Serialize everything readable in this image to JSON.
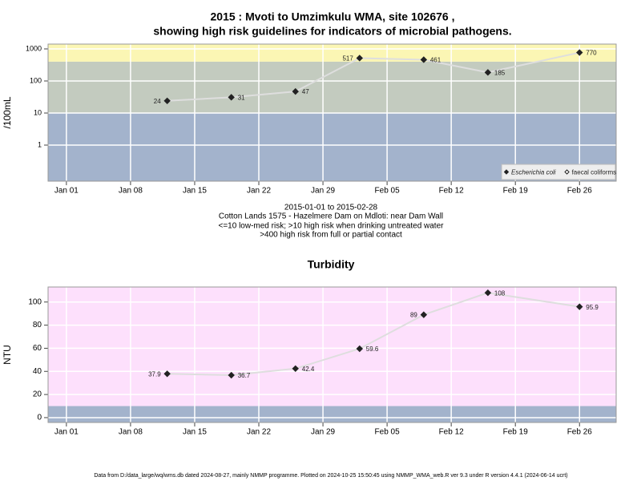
{
  "footer": "Data from D:/data_large/wq/wms.db dated 2024-08-27, mainly NMMP programme. Plotted on 2024-10-25 15:50:45 using NMMP_WMA_web.R ver 9.3 under R version 4.4.1 (2024-06-14 ucrt)",
  "chart_data": [
    {
      "type": "line",
      "title": [
        "2015 : Mvoti to Umzimkulu WMA, site 102676 ,",
        "showing high risk guidelines for indicators of microbial pathogens."
      ],
      "notes": [
        "2015-01-01 to 2015-02-28",
        "Cotton Lands 1575 - Hazelmere Dam on Mdloti: near Dam Wall",
        "<=10 low-med risk; >10 high risk when drinking untreated water",
        ">400 high risk from full or partial contact"
      ],
      "y_label": "/100mL",
      "log_scale": true,
      "grid": true,
      "legend": "bottom right",
      "x": [
        "2015-01-12",
        "2015-01-19",
        "2015-01-26",
        "2015-02-02",
        "2015-02-09",
        "2015-02-16",
        "2015-02-26"
      ],
      "xlim": [
        "2014-12-30",
        "2015-03-02"
      ],
      "xticks": [
        {
          "value": "2015-01-01",
          "label": "Jan 01"
        },
        {
          "value": "2015-01-08",
          "label": "Jan 08"
        },
        {
          "value": "2015-01-15",
          "label": "Jan 15"
        },
        {
          "value": "2015-01-22",
          "label": "Jan 22"
        },
        {
          "value": "2015-01-29",
          "label": "Jan 29"
        },
        {
          "value": "2015-02-05",
          "label": "Feb 05"
        },
        {
          "value": "2015-02-12",
          "label": "Feb 12"
        },
        {
          "value": "2015-02-19",
          "label": "Feb 19"
        },
        {
          "value": "2015-02-26",
          "label": "Feb 26"
        }
      ],
      "ylim": [
        0.075,
        1413
      ],
      "yticks": [
        1,
        10,
        100,
        1000
      ],
      "bands": [
        {
          "from": 0.075,
          "to": 10,
          "color": "#a3b3cc"
        },
        {
          "from": 10,
          "to": 400,
          "color": "#c3cbbf"
        },
        {
          "from": 400,
          "to": 1413,
          "color": "#fbf6b4"
        }
      ],
      "line_color": "#dedede",
      "series": [
        {
          "name": "Escherichia coli",
          "color": "#222222",
          "filled": true,
          "values": [
            24,
            31,
            47,
            517,
            461,
            185,
            770
          ]
        },
        {
          "name": "faecal coliforms",
          "color": "#222222",
          "filled": false,
          "values": [
            null,
            null,
            null,
            null,
            null,
            null,
            null
          ]
        }
      ]
    },
    {
      "type": "line",
      "title": [
        "Turbidity"
      ],
      "y_label": "NTU",
      "log_scale": false,
      "grid": true,
      "x": [
        "2015-01-12",
        "2015-01-19",
        "2015-01-26",
        "2015-02-02",
        "2015-02-09",
        "2015-02-16",
        "2015-02-26"
      ],
      "xlim": [
        "2014-12-30",
        "2015-03-02"
      ],
      "xticks": [
        {
          "value": "2015-01-01",
          "label": "Jan 01"
        },
        {
          "value": "2015-01-08",
          "label": "Jan 08"
        },
        {
          "value": "2015-01-15",
          "label": "Jan 15"
        },
        {
          "value": "2015-01-22",
          "label": "Jan 22"
        },
        {
          "value": "2015-01-29",
          "label": "Jan 29"
        },
        {
          "value": "2015-02-05",
          "label": "Feb 05"
        },
        {
          "value": "2015-02-12",
          "label": "Feb 12"
        },
        {
          "value": "2015-02-19",
          "label": "Feb 19"
        },
        {
          "value": "2015-02-26",
          "label": "Feb 26"
        }
      ],
      "ylim": [
        -4.2,
        113
      ],
      "yticks": [
        0,
        20,
        40,
        60,
        80,
        100
      ],
      "bands": [
        {
          "from": -4.2,
          "to": 10,
          "color": "#a3b3cc"
        },
        {
          "from": 10,
          "to": 113,
          "color": "#fde0fc"
        }
      ],
      "line_color": "#dedede",
      "series": [
        {
          "name": "Turbidity",
          "color": "#222222",
          "filled": true,
          "values": [
            37.9,
            36.7,
            42.4,
            59.6,
            89,
            108,
            95.9
          ]
        }
      ]
    }
  ]
}
